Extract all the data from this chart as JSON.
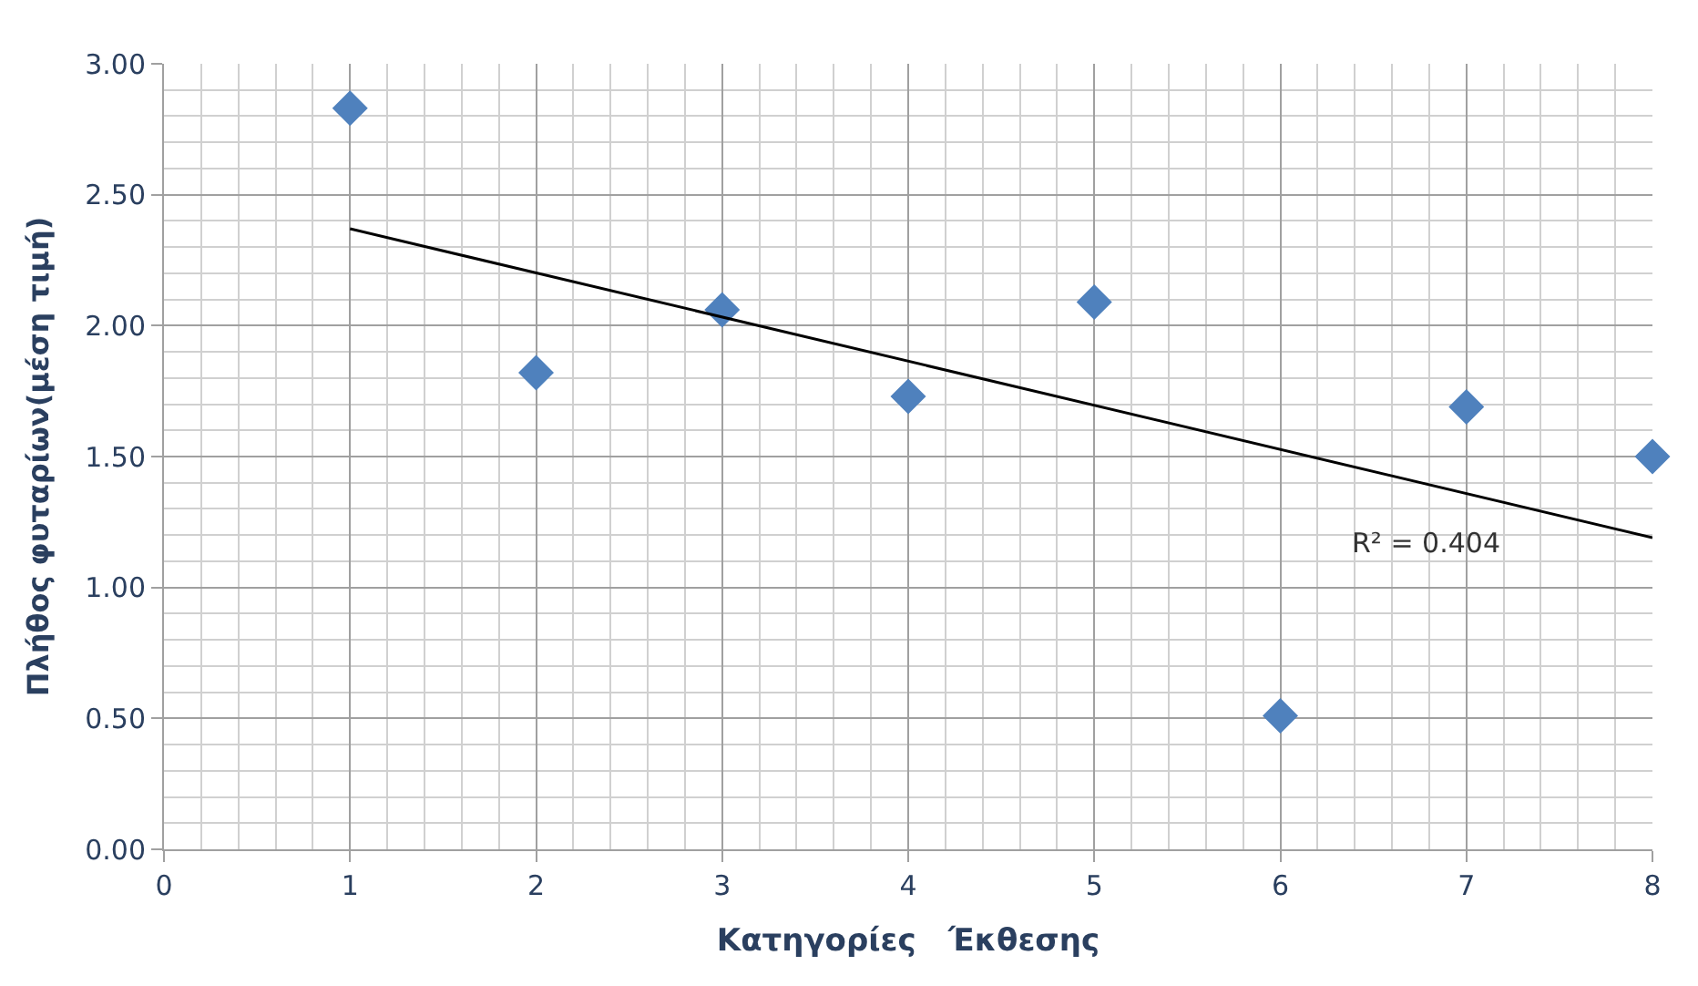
{
  "chart_data": {
    "type": "scatter",
    "xlabel": "Κατηγορίες   Έκθεσης",
    "ylabel": "Πλήθος φυταρίων(μέση τιμή)",
    "series": [
      {
        "color": "#4f81bd",
        "marker": "diamond",
        "x": [
          1,
          2,
          3,
          4,
          5,
          6,
          7,
          8
        ],
        "values": [
          2.83,
          1.82,
          2.06,
          1.73,
          2.09,
          0.51,
          1.69,
          1.5
        ]
      },
      {
        "type": "line",
        "color": "#000000",
        "marker": "none",
        "line_style": "solid",
        "x": [
          1,
          8
        ],
        "values": [
          2.37,
          1.19
        ]
      }
    ],
    "annotations": [
      "R² = 0.404"
    ],
    "xlim": [
      0,
      8
    ],
    "xticks": [
      0,
      1,
      2,
      3,
      4,
      5,
      6,
      7,
      8
    ],
    "ylim": [
      0,
      3
    ],
    "yticks": [
      {
        "value": 0,
        "label": "0.00"
      },
      {
        "value": 0.5,
        "label": "0.50"
      },
      {
        "value": 1,
        "label": "1.00"
      },
      {
        "value": 1.5,
        "label": "1.50"
      },
      {
        "value": 2,
        "label": "2.00"
      },
      {
        "value": 2.5,
        "label": "2.50"
      },
      {
        "value": 3,
        "label": "3.00"
      }
    ],
    "grid": true
  }
}
